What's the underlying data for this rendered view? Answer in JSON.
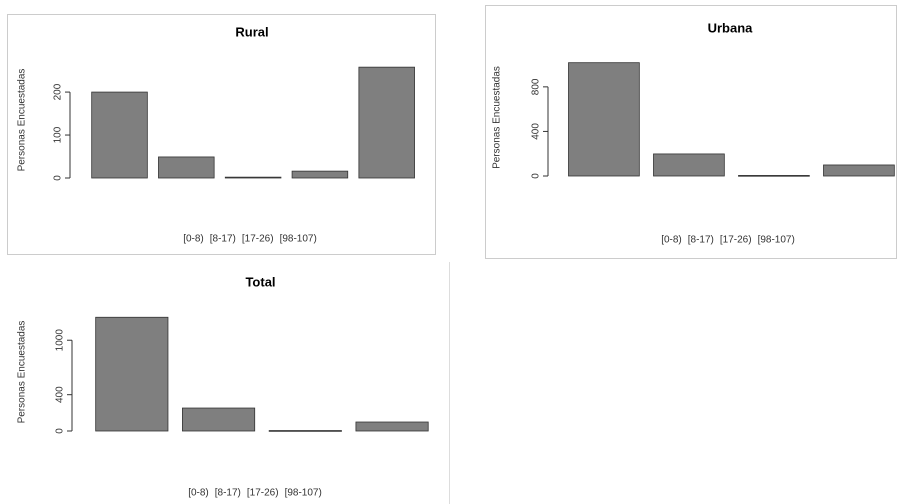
{
  "chart_data": [
    {
      "type": "bar",
      "title": "Rural",
      "y_label": "Personas Encuestadas",
      "categories": [
        "[0-8)",
        "[8-17)",
        "[17-26)",
        "[98-107)",
        null
      ],
      "values": [
        200,
        49,
        2,
        16,
        258
      ],
      "color": "#7f7f7f",
      "ylim": [
        0,
        270
      ],
      "yticks": [
        0,
        100,
        200
      ]
    },
    {
      "type": "bar",
      "title": "Urbana",
      "y_label": "Personas Encuestadas",
      "categories": [
        "[0-8)",
        "[8-17)",
        "[17-26)",
        "[98-107)"
      ],
      "values": [
        1017,
        198,
        5,
        99
      ],
      "color": "#7f7f7f",
      "ylim": [
        0,
        1050
      ],
      "yticks": [
        0,
        400,
        800
      ]
    },
    {
      "type": "bar",
      "title": "Total",
      "y_label": "Personas Encuestadas",
      "categories": [
        "[0-8)",
        "[8-17)",
        "[17-26)",
        "[98-107)"
      ],
      "values": [
        1253,
        253,
        5,
        99
      ],
      "color": "#7f7f7f",
      "ylim": [
        0,
        1300
      ],
      "yticks": [
        0,
        400,
        1000
      ]
    }
  ]
}
